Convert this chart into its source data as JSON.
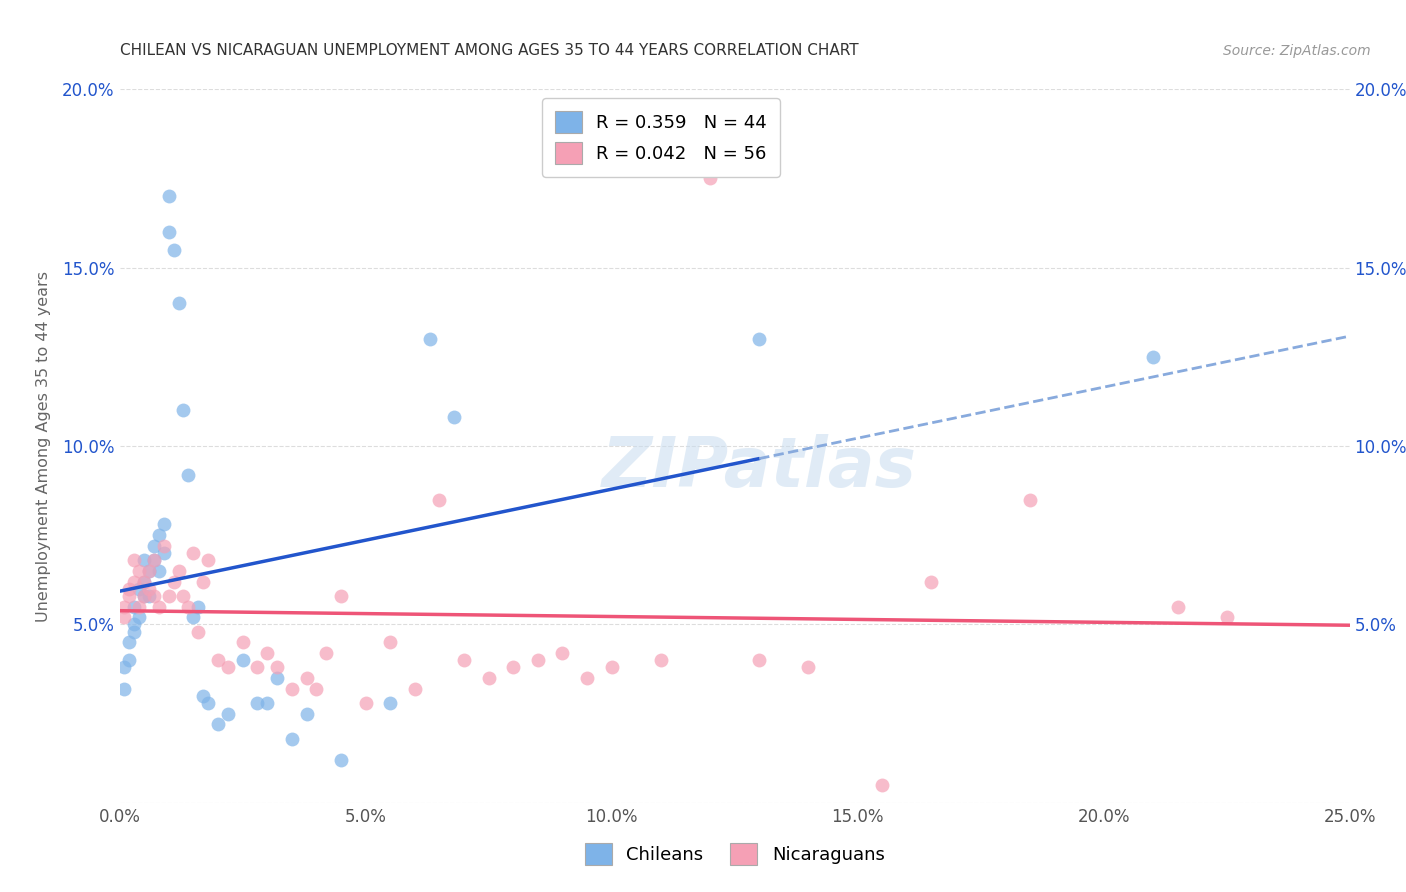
{
  "title": "CHILEAN VS NICARAGUAN UNEMPLOYMENT AMONG AGES 35 TO 44 YEARS CORRELATION CHART",
  "source": "Source: ZipAtlas.com",
  "ylabel": "Unemployment Among Ages 35 to 44 years",
  "xlim": [
    0.0,
    0.25
  ],
  "ylim": [
    0.0,
    0.2
  ],
  "xticks": [
    0.0,
    0.05,
    0.1,
    0.15,
    0.2,
    0.25
  ],
  "yticks": [
    0.0,
    0.05,
    0.1,
    0.15,
    0.2
  ],
  "xtick_labels": [
    "0.0%",
    "5.0%",
    "10.0%",
    "15.0%",
    "20.0%",
    "25.0%"
  ],
  "ytick_labels": [
    "",
    "5.0%",
    "10.0%",
    "15.0%",
    "20.0%"
  ],
  "chilean_color": "#7EB3E8",
  "nicaraguan_color": "#F5A0B5",
  "chilean_line_color": "#2255CC",
  "nicaraguan_line_color": "#EE5577",
  "dashed_line_color": "#88AADD",
  "legend_label_chilean": "Chileans",
  "legend_label_nicaraguan": "Nicaraguans",
  "watermark": "ZIPatlas",
  "background_color": "#FFFFFF",
  "grid_color": "#DDDDDD",
  "chilean_x": [
    0.001,
    0.001,
    0.002,
    0.002,
    0.003,
    0.003,
    0.003,
    0.004,
    0.004,
    0.005,
    0.005,
    0.005,
    0.006,
    0.006,
    0.007,
    0.007,
    0.008,
    0.008,
    0.009,
    0.009,
    0.01,
    0.01,
    0.011,
    0.012,
    0.013,
    0.014,
    0.015,
    0.016,
    0.017,
    0.018,
    0.02,
    0.022,
    0.025,
    0.028,
    0.03,
    0.032,
    0.035,
    0.038,
    0.045,
    0.055,
    0.063,
    0.068,
    0.13,
    0.21
  ],
  "chilean_y": [
    0.038,
    0.032,
    0.04,
    0.045,
    0.05,
    0.048,
    0.055,
    0.052,
    0.06,
    0.058,
    0.062,
    0.068,
    0.065,
    0.058,
    0.072,
    0.068,
    0.075,
    0.065,
    0.078,
    0.07,
    0.17,
    0.16,
    0.155,
    0.14,
    0.11,
    0.092,
    0.052,
    0.055,
    0.03,
    0.028,
    0.022,
    0.025,
    0.04,
    0.028,
    0.028,
    0.035,
    0.018,
    0.025,
    0.012,
    0.028,
    0.13,
    0.108,
    0.13,
    0.125
  ],
  "nicaraguan_x": [
    0.001,
    0.001,
    0.002,
    0.002,
    0.003,
    0.003,
    0.004,
    0.004,
    0.005,
    0.005,
    0.006,
    0.006,
    0.007,
    0.007,
    0.008,
    0.009,
    0.01,
    0.011,
    0.012,
    0.013,
    0.014,
    0.015,
    0.016,
    0.017,
    0.018,
    0.02,
    0.022,
    0.025,
    0.028,
    0.03,
    0.032,
    0.035,
    0.038,
    0.04,
    0.042,
    0.045,
    0.05,
    0.055,
    0.06,
    0.065,
    0.07,
    0.075,
    0.08,
    0.085,
    0.09,
    0.095,
    0.1,
    0.11,
    0.12,
    0.13,
    0.14,
    0.155,
    0.165,
    0.185,
    0.215,
    0.225
  ],
  "nicaraguan_y": [
    0.052,
    0.055,
    0.058,
    0.06,
    0.062,
    0.068,
    0.055,
    0.065,
    0.058,
    0.062,
    0.06,
    0.065,
    0.068,
    0.058,
    0.055,
    0.072,
    0.058,
    0.062,
    0.065,
    0.058,
    0.055,
    0.07,
    0.048,
    0.062,
    0.068,
    0.04,
    0.038,
    0.045,
    0.038,
    0.042,
    0.038,
    0.032,
    0.035,
    0.032,
    0.042,
    0.058,
    0.028,
    0.045,
    0.032,
    0.085,
    0.04,
    0.035,
    0.038,
    0.04,
    0.042,
    0.035,
    0.038,
    0.04,
    0.175,
    0.04,
    0.038,
    0.005,
    0.062,
    0.085,
    0.055,
    0.052
  ],
  "chi_line_x_solid_start": 0.0,
  "chi_line_x_solid_end": 0.13,
  "chi_line_x_dash_end": 0.25,
  "nic_line_x_start": 0.0,
  "nic_line_x_end": 0.25
}
